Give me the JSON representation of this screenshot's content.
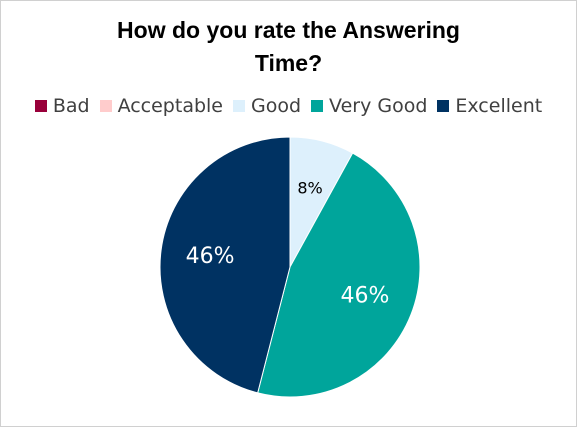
{
  "chart_data": {
    "type": "pie",
    "title_lines": [
      "How do you rate the Answering",
      "Time?"
    ],
    "legend_position": "top",
    "categories": [
      "Bad",
      "Acceptable",
      "Good",
      "Very Good",
      "Excellent"
    ],
    "values": [
      0,
      0,
      8,
      46,
      46
    ],
    "data_labels": [
      "",
      "",
      "8%",
      "46%",
      "46%"
    ],
    "colors": [
      "#99003a",
      "#ffcccc",
      "#ddf0fc",
      "#00a59b",
      "#003262"
    ],
    "label_colors": [
      "#000000",
      "#000000",
      "#000000",
      "#ffffff",
      "#ffffff"
    ]
  }
}
